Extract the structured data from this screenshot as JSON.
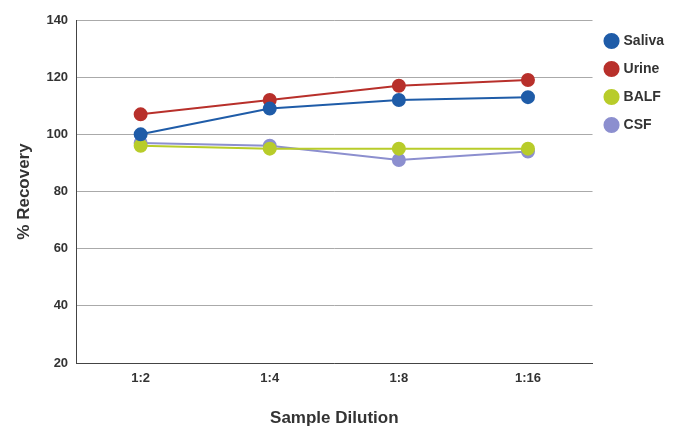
{
  "chart_data": {
    "type": "line",
    "x_label": "Sample Dilution",
    "y_label": "% Recovery",
    "categories": [
      "1:2",
      "1:4",
      "1:8",
      "1:16"
    ],
    "series": [
      {
        "name": "Saliva",
        "color": "#1f5ca8",
        "values": [
          100,
          109,
          112,
          113
        ]
      },
      {
        "name": "Urine",
        "color": "#b8302b",
        "values": [
          107,
          112,
          117,
          119
        ]
      },
      {
        "name": "BALF",
        "color": "#b8cc2a",
        "values": [
          96,
          95,
          95,
          95
        ]
      },
      {
        "name": "CSF",
        "color": "#8c8fcf",
        "values": [
          97,
          96,
          91,
          94
        ]
      }
    ],
    "ylim": [
      20,
      140
    ],
    "yticks": [
      20,
      40,
      60,
      80,
      100,
      120,
      140
    ],
    "grid": true,
    "legend": "right",
    "marker": "circle"
  }
}
